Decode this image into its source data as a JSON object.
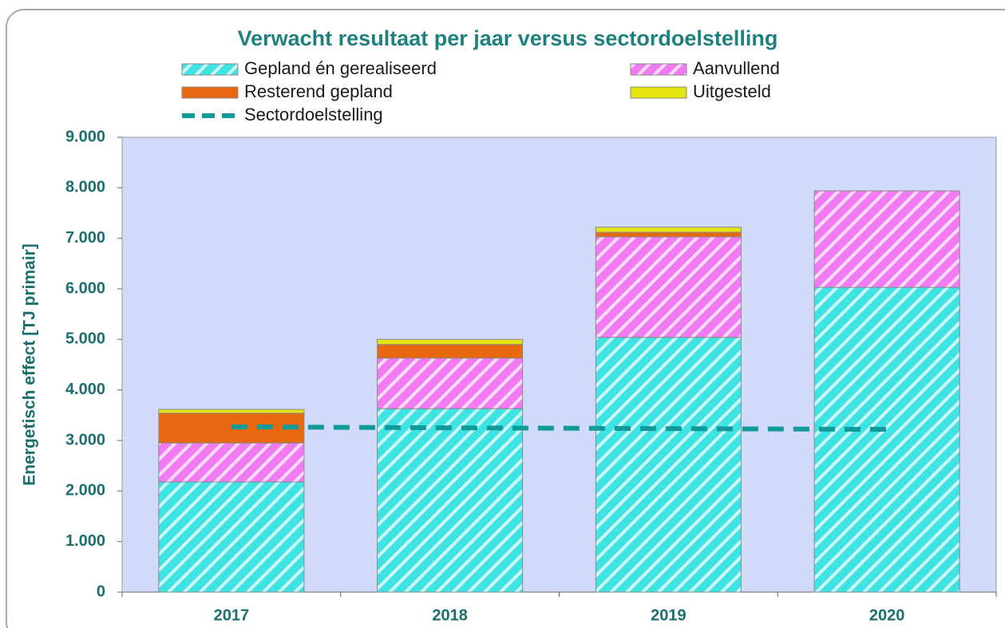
{
  "chart_data": {
    "type": "bar",
    "stacked": true,
    "title": "Verwacht resultaat per jaar versus sectordoelstelling",
    "y_label": "Energetisch effect [TJ primair]",
    "categories": [
      "2017",
      "2018",
      "2019",
      "2020"
    ],
    "series": [
      {
        "name": "Gepland én gerealiseerd",
        "color": "#3fe3e3",
        "values": [
          2180,
          3630,
          5040,
          6030
        ]
      },
      {
        "name": "Aanvullend",
        "color": "#f27af2",
        "values": [
          770,
          1000,
          1990,
          1910
        ]
      },
      {
        "name": "Resterend gepland",
        "color": "#e8690f",
        "values": [
          590,
          270,
          90,
          0
        ]
      },
      {
        "name": "Uitgesteld",
        "color": "#e4e410",
        "values": [
          75,
          100,
          100,
          0
        ]
      },
      {
        "name": "Sectordoelstelling",
        "color": "#119a9a",
        "type": "line",
        "values": [
          3270,
          3250,
          3235,
          3220
        ]
      }
    ],
    "ylim": [
      0,
      9000
    ],
    "yticks": [
      0,
      {
        "value": 1000,
        "label": "1.000"
      },
      {
        "value": 2000,
        "label": "2.000"
      },
      {
        "value": 3000,
        "label": "3.000"
      },
      {
        "value": 4000,
        "label": "4.000"
      },
      {
        "value": 5000,
        "label": "5.000"
      },
      {
        "value": 6000,
        "label": "6.000"
      },
      {
        "value": 7000,
        "label": "7.000"
      },
      {
        "value": 8000,
        "label": "8.000"
      },
      {
        "value": 9000,
        "label": "9.000"
      }
    ],
    "grid": false,
    "legend": "top"
  }
}
